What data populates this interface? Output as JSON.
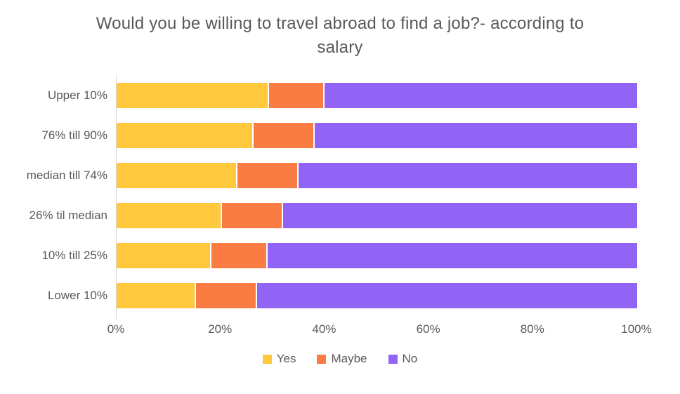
{
  "title": "Would you be willing to travel abroad to find a job?- according to salary",
  "colors": {
    "yes": "#FFC83D",
    "maybe": "#FA7C43",
    "no": "#9164F5",
    "text": "#595959",
    "axis_line": "#D9D9D9",
    "background": "#FFFFFF"
  },
  "chart_data": {
    "type": "bar",
    "orientation": "horizontal",
    "stacked": true,
    "title": "Would you be willing to travel abroad to find a job?- according to salary",
    "categories": [
      "Upper 10%",
      "76% till 90%",
      "median till 74%",
      "26% til median",
      "10% till 25%",
      "Lower 10%"
    ],
    "series": [
      {
        "name": "Yes",
        "color": "#FFC83D",
        "values": [
          29,
          26,
          23,
          20,
          18,
          15
        ]
      },
      {
        "name": "Maybe",
        "color": "#FA7C43",
        "values": [
          11,
          12,
          12,
          12,
          11,
          12
        ]
      },
      {
        "name": "No",
        "color": "#9164F5",
        "values": [
          60,
          62,
          65,
          68,
          71,
          73
        ]
      }
    ],
    "xlabel": "",
    "ylabel": "",
    "xlim": [
      0,
      100
    ],
    "x_tick_values": [
      0,
      20,
      40,
      60,
      80,
      100
    ],
    "x_tick_labels": [
      "0%",
      "20%",
      "40%",
      "60%",
      "80%",
      "100%"
    ],
    "grid": false,
    "legend_position": "bottom",
    "legend_entries": [
      "Yes",
      "Maybe",
      "No"
    ]
  }
}
